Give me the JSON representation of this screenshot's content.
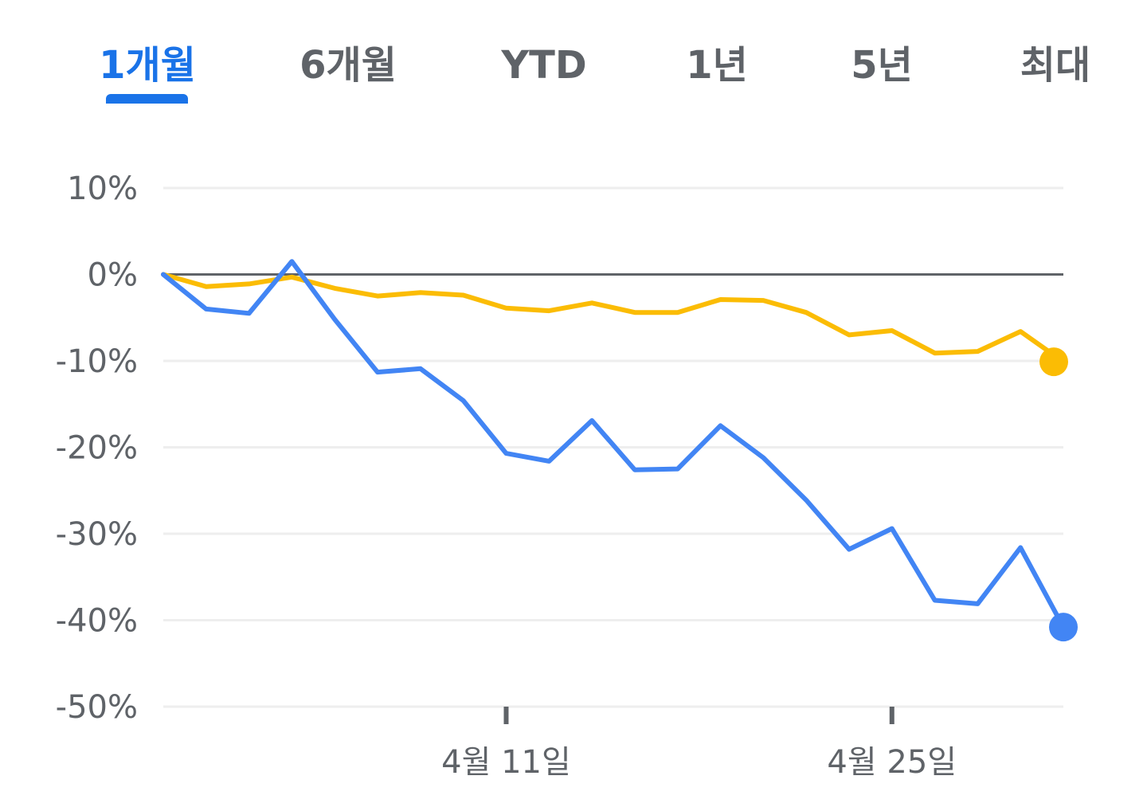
{
  "tabs": [
    {
      "label": "1개월",
      "active": true
    },
    {
      "label": "6개월",
      "active": false
    },
    {
      "label": "YTD",
      "active": false
    },
    {
      "label": "1년",
      "active": false
    },
    {
      "label": "5년",
      "active": false
    },
    {
      "label": "최대",
      "active": false
    }
  ],
  "colors": {
    "accent": "#1a73e8",
    "tab_text": "#5f6368",
    "grid": "#eeeeee",
    "zero_line": "#5f6368",
    "axis_text": "#5f6368"
  },
  "chart_data": {
    "type": "line",
    "title": "",
    "xlabel": "",
    "ylabel": "",
    "y_unit": "%",
    "ylim": [
      -50,
      10
    ],
    "yticks": [
      10,
      0,
      -10,
      -20,
      -30,
      -40,
      -50
    ],
    "ytick_labels": [
      "10%",
      "0%",
      "-10%",
      "-20%",
      "-30%",
      "-40%",
      "-50%"
    ],
    "grid": true,
    "legend": "none",
    "x": [
      0,
      1,
      2,
      3,
      4,
      5,
      6,
      7,
      8,
      9,
      10,
      11,
      12,
      13,
      14,
      15,
      16,
      17,
      18,
      19,
      20,
      21
    ],
    "xtick_positions": [
      8,
      17
    ],
    "xtick_labels": [
      "4월 11일",
      "4월 25일"
    ],
    "series": [
      {
        "color": "#fbbc04",
        "values": [
          0,
          -1.4,
          -1.1,
          -0.3,
          -1.6,
          -2.5,
          -2.1,
          -2.4,
          -3.9,
          -4.2,
          -3.3,
          -4.4,
          -4.4,
          -2.9,
          -3.0,
          -4.4,
          -7.0,
          -6.5,
          -9.1,
          -8.9,
          -6.6,
          -10.1
        ]
      },
      {
        "color": "#4285f4",
        "values": [
          0,
          -4.0,
          -4.5,
          1.5,
          -5.2,
          -11.3,
          -10.9,
          -14.6,
          -20.7,
          -21.6,
          -16.9,
          -22.6,
          -22.5,
          -17.5,
          -21.2,
          -26.1,
          -31.8,
          -29.4,
          -37.7,
          -38.1,
          -31.6,
          -40.8
        ]
      }
    ]
  }
}
